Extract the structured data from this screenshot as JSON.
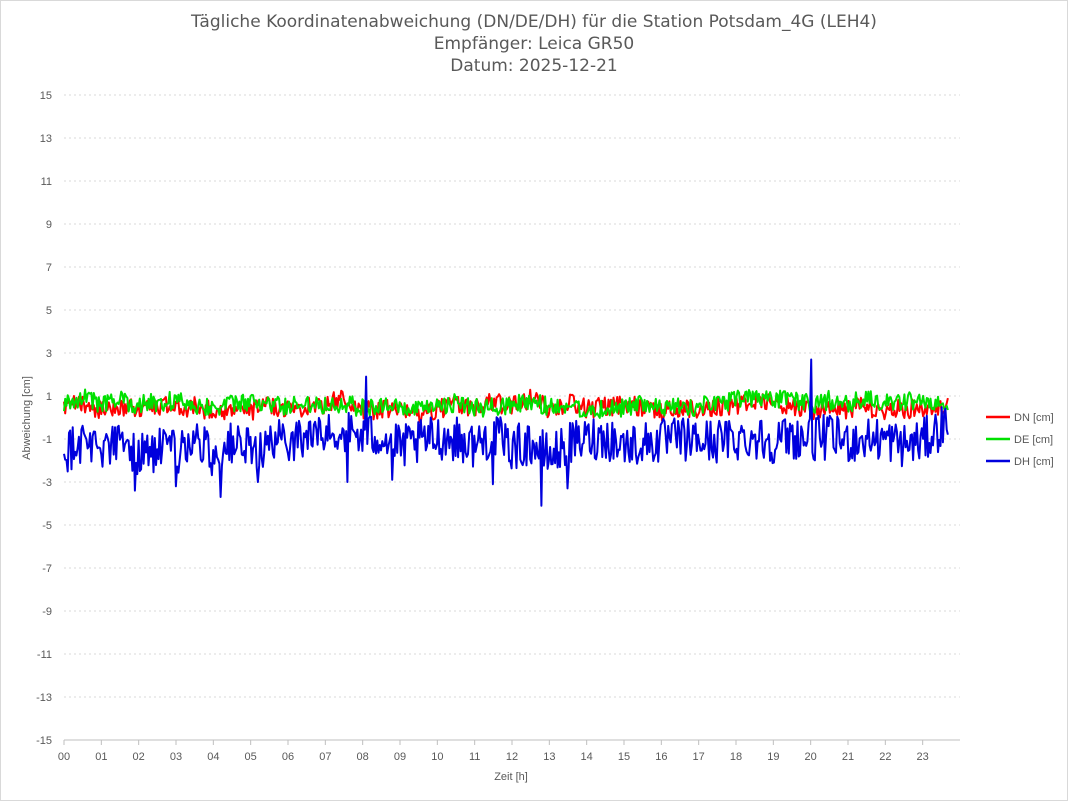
{
  "chart_data": {
    "type": "line",
    "title": "Tägliche Koordinatenabweichung (DN/DE/DH) für die Station Potsdam_4G (LEH4)",
    "subtitle": "Empfänger: Leica GR50",
    "date_line": "Datum: 2025-12-21",
    "xlabel": "Zeit [h]",
    "ylabel": "Abweichung [cm]",
    "xlim": [
      0,
      24
    ],
    "ylim": [
      -15,
      15
    ],
    "x_ticks": [
      0,
      1,
      2,
      3,
      4,
      5,
      6,
      7,
      8,
      9,
      10,
      11,
      12,
      13,
      14,
      15,
      16,
      17,
      18,
      19,
      20,
      21,
      22,
      23
    ],
    "x_tick_labels": [
      "00",
      "01",
      "02",
      "03",
      "04",
      "05",
      "06",
      "07",
      "08",
      "09",
      "10",
      "11",
      "12",
      "13",
      "14",
      "15",
      "16",
      "17",
      "18",
      "19",
      "20",
      "21",
      "22",
      "23"
    ],
    "y_ticks": [
      15,
      13,
      11,
      9,
      7,
      5,
      3,
      1,
      -1,
      -3,
      -5,
      -7,
      -9,
      -11,
      -13,
      -15
    ],
    "grid": "horizontal dotted",
    "legend_position": "right",
    "x_step_hours": 0.0333,
    "series": [
      {
        "name": "DN [cm]",
        "color": "#ff0000",
        "keypoints": [
          [
            0,
            0.4
          ],
          [
            0.5,
            0.7
          ],
          [
            1,
            0.3
          ],
          [
            1.5,
            0.5
          ],
          [
            2,
            0.4
          ],
          [
            2.5,
            0.6
          ],
          [
            3,
            0.4
          ],
          [
            3.5,
            0.5
          ],
          [
            4,
            0.3
          ],
          [
            4.5,
            0.4
          ],
          [
            5,
            0.3
          ],
          [
            5.5,
            0.6
          ],
          [
            6,
            0.4
          ],
          [
            6.5,
            0.5
          ],
          [
            7,
            0.6
          ],
          [
            7.5,
            0.9
          ],
          [
            8,
            0.3
          ],
          [
            8.5,
            0.4
          ],
          [
            9,
            0.3
          ],
          [
            9.5,
            0.2
          ],
          [
            10,
            0.4
          ],
          [
            10.5,
            0.6
          ],
          [
            11,
            0.5
          ],
          [
            11.5,
            0.7
          ],
          [
            12,
            0.5
          ],
          [
            12.5,
            0.9
          ],
          [
            13,
            0.4
          ],
          [
            13.5,
            0.7
          ],
          [
            14,
            0.4
          ],
          [
            14.5,
            0.5
          ],
          [
            15,
            0.6
          ],
          [
            15.5,
            0.5
          ],
          [
            16,
            0.3
          ],
          [
            16.5,
            0.4
          ],
          [
            17,
            0.4
          ],
          [
            17.5,
            0.5
          ],
          [
            18,
            0.6
          ],
          [
            18.5,
            0.8
          ],
          [
            19,
            0.6
          ],
          [
            19.5,
            0.5
          ],
          [
            20,
            0.3
          ],
          [
            20.5,
            0.4
          ],
          [
            21,
            0.4
          ],
          [
            21.5,
            0.5
          ],
          [
            22,
            0.3
          ],
          [
            22.5,
            0.4
          ],
          [
            23,
            0.4
          ],
          [
            23.7,
            0.6
          ]
        ]
      },
      {
        "name": "DE [cm]",
        "color": "#00e000",
        "keypoints": [
          [
            0,
            0.6
          ],
          [
            0.5,
            1.0
          ],
          [
            1,
            0.6
          ],
          [
            1.5,
            0.8
          ],
          [
            2,
            0.6
          ],
          [
            2.5,
            0.7
          ],
          [
            3,
            0.8
          ],
          [
            3.5,
            0.6
          ],
          [
            4,
            0.5
          ],
          [
            4.5,
            0.6
          ],
          [
            5,
            0.7
          ],
          [
            5.5,
            0.6
          ],
          [
            6,
            0.5
          ],
          [
            6.5,
            0.7
          ],
          [
            7,
            0.6
          ],
          [
            7.5,
            0.7
          ],
          [
            8,
            0.4
          ],
          [
            8.5,
            0.6
          ],
          [
            9,
            0.4
          ],
          [
            9.5,
            0.3
          ],
          [
            10,
            0.5
          ],
          [
            10.5,
            0.7
          ],
          [
            11,
            0.4
          ],
          [
            11.5,
            0.5
          ],
          [
            12,
            0.6
          ],
          [
            12.5,
            0.7
          ],
          [
            13,
            0.5
          ],
          [
            13.5,
            0.6
          ],
          [
            14,
            0.3
          ],
          [
            14.5,
            0.4
          ],
          [
            15,
            0.5
          ],
          [
            15.5,
            0.6
          ],
          [
            16,
            0.4
          ],
          [
            16.5,
            0.5
          ],
          [
            17,
            0.5
          ],
          [
            17.5,
            0.7
          ],
          [
            18,
            0.8
          ],
          [
            18.5,
            0.9
          ],
          [
            19,
            0.8
          ],
          [
            19.5,
            0.9
          ],
          [
            20,
            0.6
          ],
          [
            20.5,
            0.8
          ],
          [
            21,
            0.7
          ],
          [
            21.5,
            0.8
          ],
          [
            22,
            0.7
          ],
          [
            22.5,
            0.8
          ],
          [
            23,
            0.7
          ],
          [
            23.7,
            0.8
          ]
        ]
      },
      {
        "name": "DH [cm]",
        "color": "#0000dd",
        "keypoints": [
          [
            0,
            -1.6
          ],
          [
            0.5,
            -1.0
          ],
          [
            1,
            -1.4
          ],
          [
            1.5,
            -1.2
          ],
          [
            2,
            -1.7
          ],
          [
            2.5,
            -1.5
          ],
          [
            3,
            -1.6
          ],
          [
            3.5,
            -1.0
          ],
          [
            4,
            -1.8
          ],
          [
            4.5,
            -1.2
          ],
          [
            5,
            -1.6
          ],
          [
            5.5,
            -1.3
          ],
          [
            6,
            -1.0
          ],
          [
            6.5,
            -0.9
          ],
          [
            7,
            -0.8
          ],
          [
            7.5,
            -0.6
          ],
          [
            8,
            -0.9
          ],
          [
            8.5,
            -0.8
          ],
          [
            9,
            -1.4
          ],
          [
            9.5,
            -1.2
          ],
          [
            10,
            -0.9
          ],
          [
            10.5,
            -1.0
          ],
          [
            11,
            -1.3
          ],
          [
            11.5,
            -0.8
          ],
          [
            12,
            -1.4
          ],
          [
            12.5,
            -1.2
          ],
          [
            13,
            -1.8
          ],
          [
            13.5,
            -1.3
          ],
          [
            14,
            -1.0
          ],
          [
            14.5,
            -0.9
          ],
          [
            15,
            -1.3
          ],
          [
            15.5,
            -1.2
          ],
          [
            16,
            -1.1
          ],
          [
            16.5,
            -1.0
          ],
          [
            17,
            -1.1
          ],
          [
            17.5,
            -1.1
          ],
          [
            18,
            -1.0
          ],
          [
            18.5,
            -0.9
          ],
          [
            19,
            -1.1
          ],
          [
            19.5,
            -0.9
          ],
          [
            20,
            -1.0
          ],
          [
            20.5,
            -0.9
          ],
          [
            21,
            -1.1
          ],
          [
            21.5,
            -1.0
          ],
          [
            22,
            -1.0
          ],
          [
            22.5,
            -1.3
          ],
          [
            23,
            -1.1
          ],
          [
            23.7,
            -0.2
          ]
        ],
        "peaks": [
          [
            1.9,
            -3.4
          ],
          [
            3.0,
            -3.2
          ],
          [
            4.2,
            -3.7
          ],
          [
            5.2,
            -3.0
          ],
          [
            7.6,
            -3.0
          ],
          [
            8.1,
            1.9
          ],
          [
            8.8,
            -2.9
          ],
          [
            11.5,
            -3.1
          ],
          [
            12.8,
            -4.1
          ],
          [
            13.5,
            -3.3
          ],
          [
            20.0,
            2.7
          ]
        ]
      }
    ]
  }
}
